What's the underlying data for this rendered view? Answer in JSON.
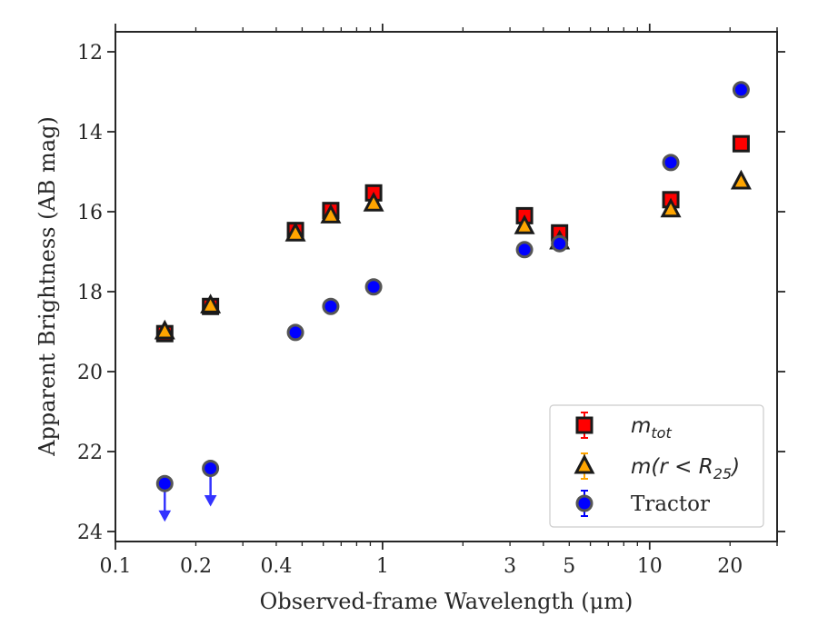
{
  "chart_data": {
    "type": "scatter",
    "xlabel": "Observed-frame Wavelength (μm)",
    "ylabel": "Apparent Brightness (AB mag)",
    "x_scale": "log",
    "xlim": [
      0.1,
      30
    ],
    "ylim": [
      24.25,
      11.5
    ],
    "y_inverted": true,
    "x_tick_labels": [
      {
        "value": 0.1,
        "label": "0.1"
      },
      {
        "value": 0.2,
        "label": "0.2"
      },
      {
        "value": 0.4,
        "label": "0.4"
      },
      {
        "value": 1,
        "label": "1"
      },
      {
        "value": 3,
        "label": "3"
      },
      {
        "value": 5,
        "label": "5"
      },
      {
        "value": 10,
        "label": "10"
      },
      {
        "value": 20,
        "label": "20"
      }
    ],
    "y_ticks": [
      12,
      14,
      16,
      18,
      20,
      22,
      24
    ],
    "grid": false,
    "legend_position": "bottom-right",
    "series": [
      {
        "name": "m_tot",
        "legend_main": "m",
        "legend_sub": "tot",
        "marker": "square",
        "color": "#ff0000",
        "x": [
          0.153,
          0.227,
          0.472,
          0.64,
          0.926,
          3.4,
          4.6,
          12,
          22
        ],
        "y": [
          19.05,
          18.37,
          16.47,
          15.97,
          15.53,
          16.1,
          16.53,
          15.7,
          14.3
        ]
      },
      {
        "name": "m(r < R_25)",
        "legend_main": "m(r < R",
        "legend_sub": "25",
        "legend_close": ")",
        "marker": "triangle",
        "color": "#ffa500",
        "x": [
          0.153,
          0.227,
          0.472,
          0.64,
          0.926,
          3.4,
          4.6,
          12,
          22
        ],
        "y": [
          19.0,
          18.35,
          16.55,
          16.1,
          15.8,
          16.37,
          16.75,
          15.95,
          15.25
        ]
      },
      {
        "name": "Tractor",
        "legend_main": "Tractor",
        "marker": "circle",
        "color": "#0000ff",
        "x": [
          0.153,
          0.227,
          0.472,
          0.64,
          0.926,
          3.4,
          4.6,
          12,
          22
        ],
        "y": [
          22.8,
          22.42,
          19.02,
          18.37,
          17.88,
          16.95,
          16.8,
          14.77,
          12.95
        ],
        "upper_limits": [
          true,
          true,
          false,
          false,
          false,
          false,
          false,
          false,
          false
        ]
      }
    ]
  }
}
